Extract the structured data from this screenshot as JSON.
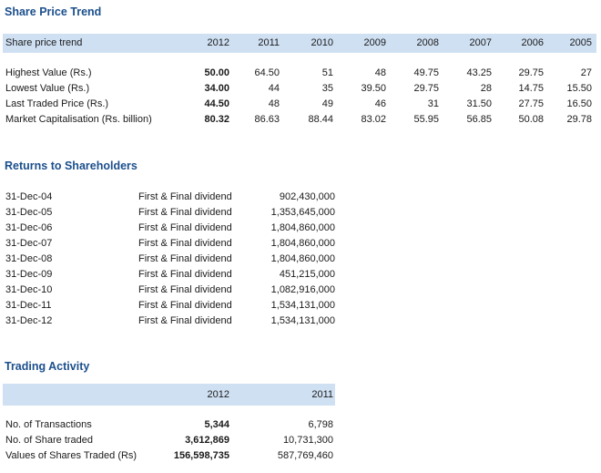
{
  "share_price_trend": {
    "heading": "Share Price Trend",
    "header_label": "Share price trend",
    "years": [
      "2012",
      "2011",
      "2010",
      "2009",
      "2008",
      "2007",
      "2006",
      "2005"
    ],
    "rows": [
      {
        "label": "Highest Value (Rs.)",
        "values": [
          "50.00",
          "64.50",
          "51",
          "48",
          "49.75",
          "43.25",
          "29.75",
          "27"
        ]
      },
      {
        "label": "Lowest Value (Rs.)",
        "values": [
          "34.00",
          "44",
          "35",
          "39.50",
          "29.75",
          "28",
          "14.75",
          "15.50"
        ]
      },
      {
        "label": "Last Traded Price (Rs.)",
        "values": [
          "44.50",
          "48",
          "49",
          "46",
          "31",
          "31.50",
          "27.75",
          "16.50"
        ]
      },
      {
        "label": "Market Capitalisation (Rs. billion)",
        "values": [
          "80.32",
          "86.63",
          "88.44",
          "83.02",
          "55.95",
          "56.85",
          "50.08",
          "29.78"
        ]
      }
    ]
  },
  "returns_to_shareholders": {
    "heading": "Returns to Shareholders",
    "rows": [
      {
        "date": "31-Dec-04",
        "type": "First & Final dividend",
        "amount": "902,430,000"
      },
      {
        "date": "31-Dec-05",
        "type": "First & Final dividend",
        "amount": "1,353,645,000"
      },
      {
        "date": "31-Dec-06",
        "type": "First & Final dividend",
        "amount": "1,804,860,000"
      },
      {
        "date": "31-Dec-07",
        "type": "First & Final dividend",
        "amount": "1,804,860,000"
      },
      {
        "date": "31-Dec-08",
        "type": "First & Final dividend",
        "amount": "1,804,860,000"
      },
      {
        "date": "31-Dec-09",
        "type": "First & Final dividend",
        "amount": "451,215,000"
      },
      {
        "date": "31-Dec-10",
        "type": "First & Final dividend",
        "amount": "1,082,916,000"
      },
      {
        "date": "31-Dec-11",
        "type": "First & Final dividend",
        "amount": "1,534,131,000"
      },
      {
        "date": "31-Dec-12",
        "type": "First & Final dividend",
        "amount": "1,534,131,000"
      }
    ]
  },
  "trading_activity": {
    "heading": "Trading Activity",
    "years": [
      "2012",
      "2011"
    ],
    "rows": [
      {
        "label": "No. of Transactions",
        "values": [
          "5,344",
          "6,798"
        ]
      },
      {
        "label": "No. of Share traded",
        "values": [
          "3,612,869",
          "10,731,300"
        ]
      },
      {
        "label": "Values of Shares Traded (Rs)",
        "values": [
          "156,598,735",
          "587,769,460"
        ]
      }
    ]
  }
}
